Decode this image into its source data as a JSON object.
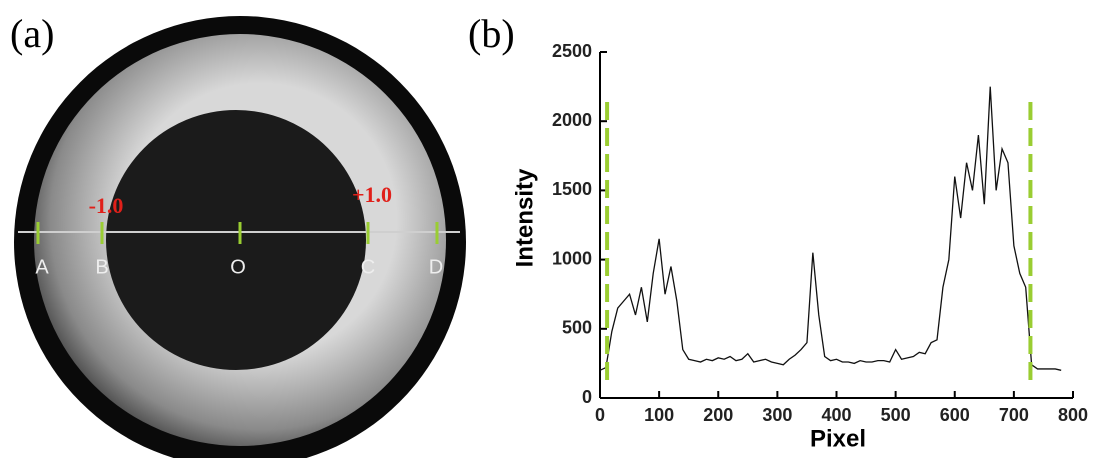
{
  "panel_a": {
    "label": "(a)",
    "scale_left": "-1.0",
    "scale_right": "+1.0",
    "points": [
      "A",
      "B",
      "O",
      "C",
      "D"
    ]
  },
  "chart_data": {
    "type": "line",
    "panel_label": "(b)",
    "x_label": "Pixel",
    "y_label": "Intensity",
    "x": [
      0,
      10,
      20,
      30,
      40,
      50,
      60,
      70,
      80,
      90,
      100,
      110,
      120,
      130,
      140,
      150,
      160,
      170,
      180,
      190,
      200,
      210,
      220,
      230,
      240,
      250,
      260,
      270,
      280,
      290,
      300,
      310,
      320,
      330,
      340,
      350,
      360,
      370,
      380,
      390,
      400,
      410,
      420,
      430,
      440,
      450,
      460,
      470,
      480,
      490,
      500,
      510,
      520,
      530,
      540,
      550,
      560,
      570,
      580,
      590,
      600,
      610,
      620,
      630,
      640,
      650,
      660,
      670,
      680,
      690,
      700,
      710,
      720,
      730,
      740,
      750,
      760,
      770,
      780
    ],
    "series": [
      {
        "color": "#111111",
        "values": [
          200,
          220,
          480,
          650,
          700,
          750,
          600,
          800,
          550,
          900,
          1150,
          750,
          950,
          700,
          350,
          280,
          270,
          260,
          280,
          270,
          290,
          280,
          300,
          270,
          280,
          320,
          260,
          270,
          280,
          260,
          250,
          240,
          280,
          310,
          350,
          400,
          1050,
          600,
          300,
          270,
          280,
          260,
          260,
          250,
          270,
          260,
          260,
          270,
          270,
          260,
          350,
          280,
          290,
          300,
          330,
          320,
          400,
          420,
          800,
          1000,
          1600,
          1300,
          1700,
          1500,
          1900,
          1400,
          2250,
          1500,
          1800,
          1700,
          1100,
          900,
          800,
          240,
          210,
          210,
          210,
          210,
          200
        ]
      }
    ],
    "vlines": [
      {
        "value": 12,
        "color": "#9acd32"
      },
      {
        "value": 728,
        "color": "#9acd32"
      }
    ],
    "xlim": [
      0,
      800
    ],
    "ylim": [
      0,
      2500
    ],
    "xticks": [
      0,
      100,
      200,
      300,
      400,
      500,
      600,
      700,
      800
    ],
    "yticks": [
      0,
      500,
      1000,
      1500,
      2000,
      2500
    ]
  }
}
